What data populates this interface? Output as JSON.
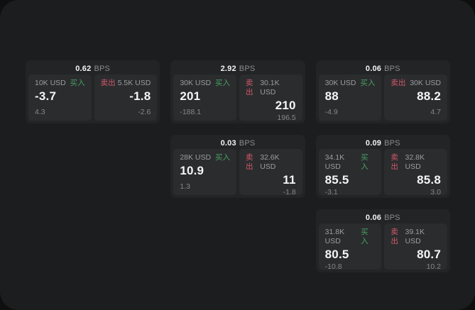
{
  "labels": {
    "bps_unit": "BPS",
    "buy": "买入",
    "sell": "卖出"
  },
  "colors": {
    "buy_green": "#46a164",
    "sell_red": "#d2596a",
    "surface": "#1c1d1e",
    "card": "#232425",
    "panel": "#2b2c2e"
  },
  "cards": [
    {
      "bps": "0.62",
      "buy": {
        "size": "10K USD",
        "price": "-3.7",
        "delta": "4.3"
      },
      "sell": {
        "size": "5.5K USD",
        "price": "-1.8",
        "delta": "-2.6"
      }
    },
    {
      "bps": "2.92",
      "buy": {
        "size": "30K USD",
        "price": "201",
        "delta": "-188.1"
      },
      "sell": {
        "size": "30.1K USD",
        "price": "210",
        "delta": "196.5"
      }
    },
    {
      "bps": "0.06",
      "buy": {
        "size": "30K USD",
        "price": "88",
        "delta": "-4.9"
      },
      "sell": {
        "size": "30K USD",
        "price": "88.2",
        "delta": "4.7"
      }
    },
    {
      "bps": "0.03",
      "buy": {
        "size": "28K USD",
        "price": "10.9",
        "delta": "1.3"
      },
      "sell": {
        "size": "32.6K USD",
        "price": "11",
        "delta": "-1.8"
      }
    },
    {
      "bps": "0.09",
      "buy": {
        "size": "34.1K USD",
        "price": "85.5",
        "delta": "-3.1"
      },
      "sell": {
        "size": "32.8K USD",
        "price": "85.8",
        "delta": "3.0"
      }
    },
    {
      "bps": "0.06",
      "buy": {
        "size": "31.8K USD",
        "price": "80.5",
        "delta": "-10.8"
      },
      "sell": {
        "size": "39.1K USD",
        "price": "80.7",
        "delta": "10.2"
      }
    }
  ]
}
